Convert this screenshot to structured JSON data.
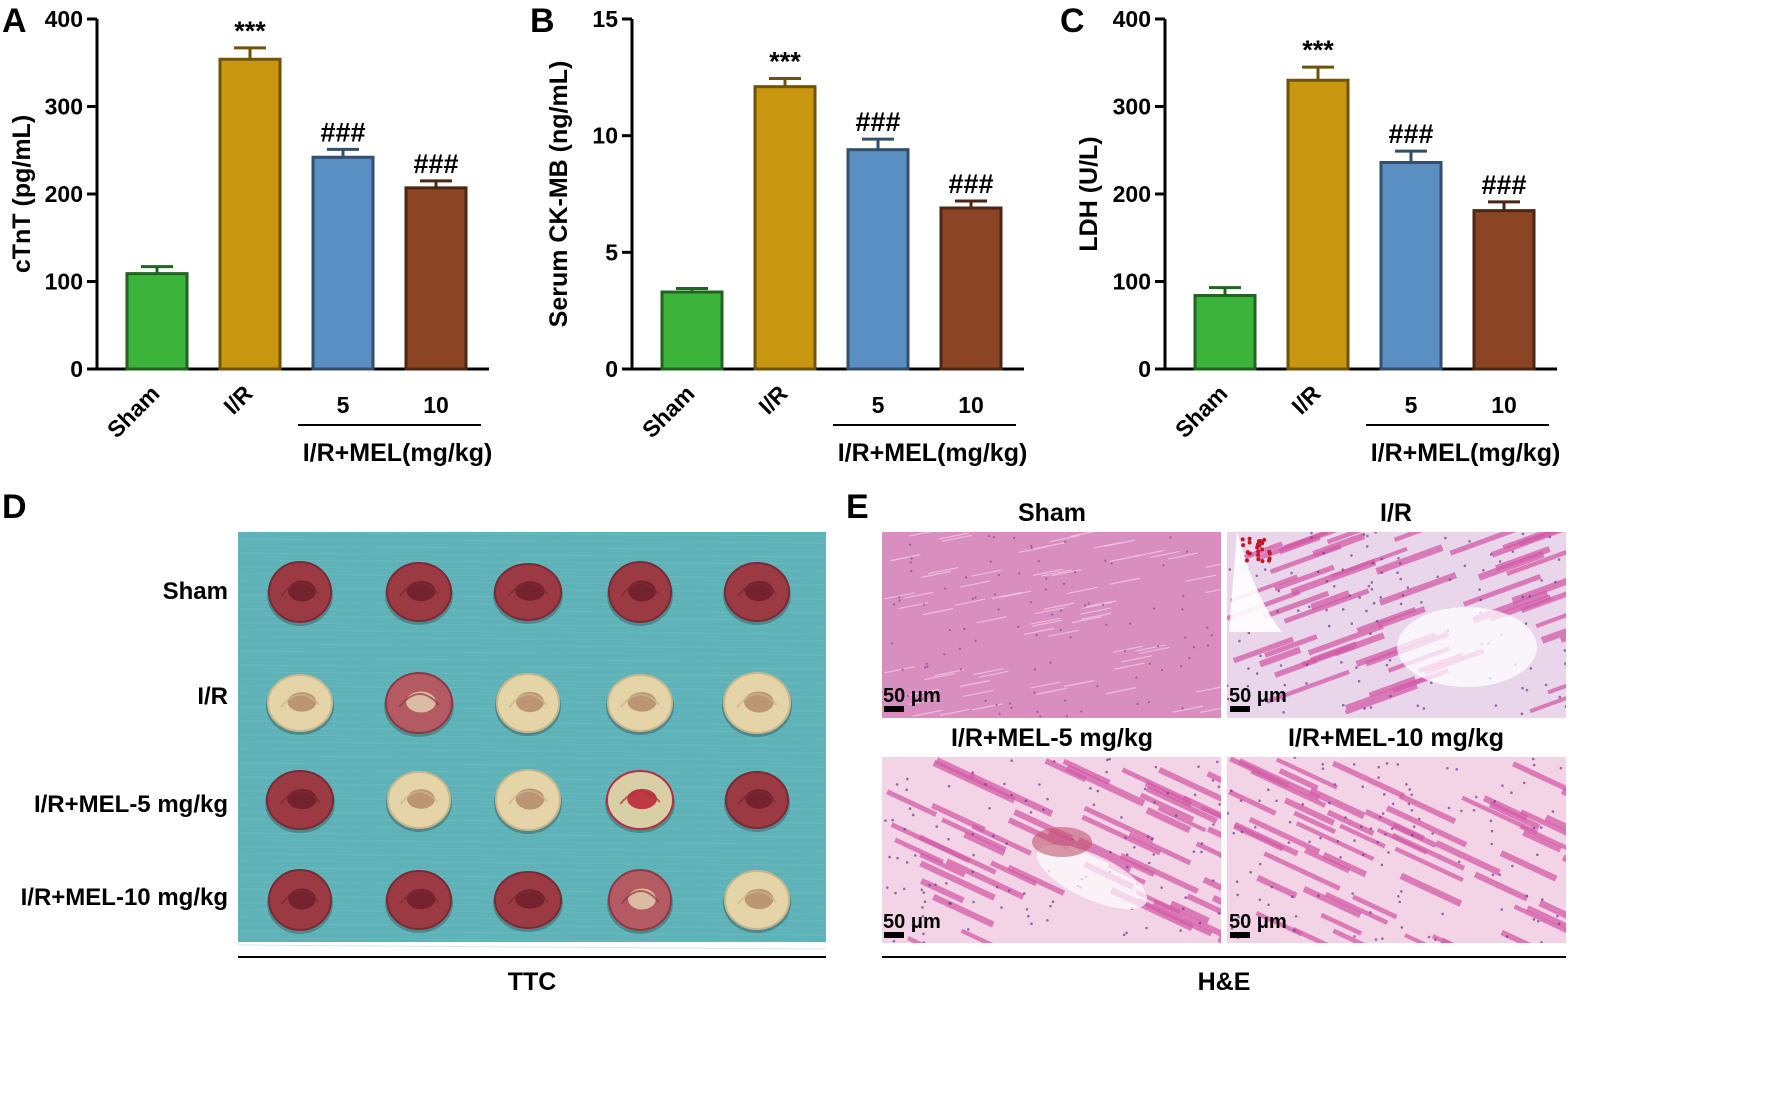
{
  "panels": {
    "A": "A",
    "B": "B",
    "C": "C",
    "D": "D",
    "E": "E"
  },
  "chart_data": [
    {
      "type": "bar",
      "panel": "A",
      "categories": [
        "Sham",
        "I/R",
        "5",
        "10"
      ],
      "values": [
        109,
        354,
        242,
        207
      ],
      "errors": [
        8,
        13,
        9,
        8
      ],
      "significance": [
        "",
        "***",
        "###",
        "###"
      ],
      "colors": [
        "#3cb43c",
        "#c8960f",
        "#5a8fc3",
        "#8b4524"
      ],
      "ylabel": "cTnT (pg/mL)",
      "xlabel": "",
      "yticks": [
        0,
        100,
        200,
        300,
        400
      ],
      "ylim": [
        0,
        400
      ],
      "group_label": "I/R+MEL(mg/kg)",
      "grid": false
    },
    {
      "type": "bar",
      "panel": "B",
      "categories": [
        "Sham",
        "I/R",
        "5",
        "10"
      ],
      "values": [
        3.3,
        12.1,
        9.4,
        6.9
      ],
      "errors": [
        0.15,
        0.35,
        0.45,
        0.3
      ],
      "significance": [
        "",
        "***",
        "###",
        "###"
      ],
      "colors": [
        "#3cb43c",
        "#c8960f",
        "#5a8fc3",
        "#8b4524"
      ],
      "ylabel": "Serum CK-MB (ng/mL)",
      "xlabel": "",
      "yticks": [
        0,
        5,
        10,
        15
      ],
      "ylim": [
        0,
        15
      ],
      "group_label": "I/R+MEL(mg/kg)",
      "grid": false
    },
    {
      "type": "bar",
      "panel": "C",
      "categories": [
        "Sham",
        "I/R",
        "5",
        "10"
      ],
      "values": [
        84,
        330,
        236,
        181
      ],
      "errors": [
        9,
        15,
        13,
        10
      ],
      "significance": [
        "",
        "***",
        "###",
        "###"
      ],
      "colors": [
        "#3cb43c",
        "#c8960f",
        "#5a8fc3",
        "#8b4524"
      ],
      "ylabel": "LDH (U/L)",
      "xlabel": "",
      "yticks": [
        0,
        100,
        200,
        300,
        400
      ],
      "ylim": [
        0,
        400
      ],
      "group_label": "I/R+MEL(mg/kg)",
      "grid": false
    }
  ],
  "ttc": {
    "rows": [
      "Sham",
      "I/R",
      "I/R+MEL-5 mg/kg",
      "I/R+MEL-10 mg/kg"
    ],
    "bottom_label": "TTC",
    "background_color": "#5fb3b8",
    "slices": [
      [
        "dark-red",
        "dark-red",
        "dark-red",
        "dark-red",
        "dark-red"
      ],
      [
        "pale",
        "mixed",
        "pale",
        "pale",
        "pale"
      ],
      [
        "dark-red",
        "pale",
        "pale",
        "red-infarct",
        "dark-red"
      ],
      [
        "dark-red",
        "dark-red",
        "dark-red",
        "mixed",
        "pale"
      ]
    ]
  },
  "he": {
    "titles": [
      "Sham",
      "I/R",
      "I/R+MEL-5 mg/kg",
      "I/R+MEL-10 mg/kg"
    ],
    "scale_bar": "50 μm",
    "bottom_label": "H&E"
  }
}
